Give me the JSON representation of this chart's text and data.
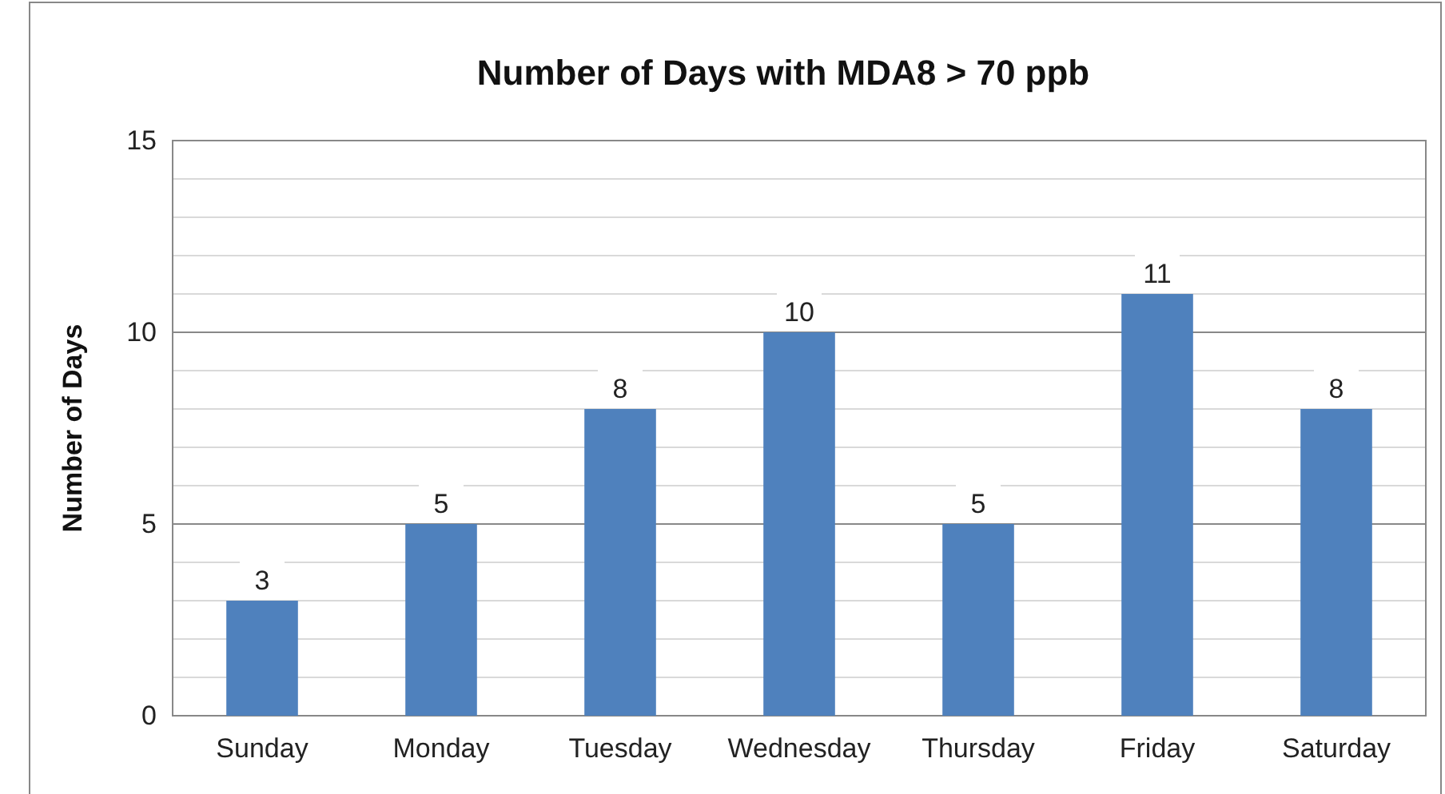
{
  "chart_data": {
    "type": "bar",
    "title": "Number of Days with MDA8 > 70 ppb",
    "ylabel": "Number of Days",
    "categories": [
      "Sunday",
      "Monday",
      "Tuesday",
      "Wednesday",
      "Thursday",
      "Friday",
      "Saturday"
    ],
    "values": [
      3,
      5,
      8,
      10,
      5,
      11,
      8
    ],
    "color": "#4f81bd",
    "data_labels": true,
    "ylim": [
      0,
      15
    ],
    "yticks": [
      0,
      {
        "value": 1,
        "label": null
      },
      {
        "value": 2,
        "label": null
      },
      {
        "value": 3,
        "label": null
      },
      {
        "value": 4,
        "label": null
      },
      5,
      {
        "value": 6,
        "label": null
      },
      {
        "value": 7,
        "label": null
      },
      {
        "value": 8,
        "label": null
      },
      {
        "value": 9,
        "label": null
      },
      10,
      {
        "value": 11,
        "label": null
      },
      {
        "value": 12,
        "label": null
      },
      {
        "value": 13,
        "label": null
      },
      {
        "value": 14,
        "label": null
      },
      15
    ],
    "grid": true
  }
}
